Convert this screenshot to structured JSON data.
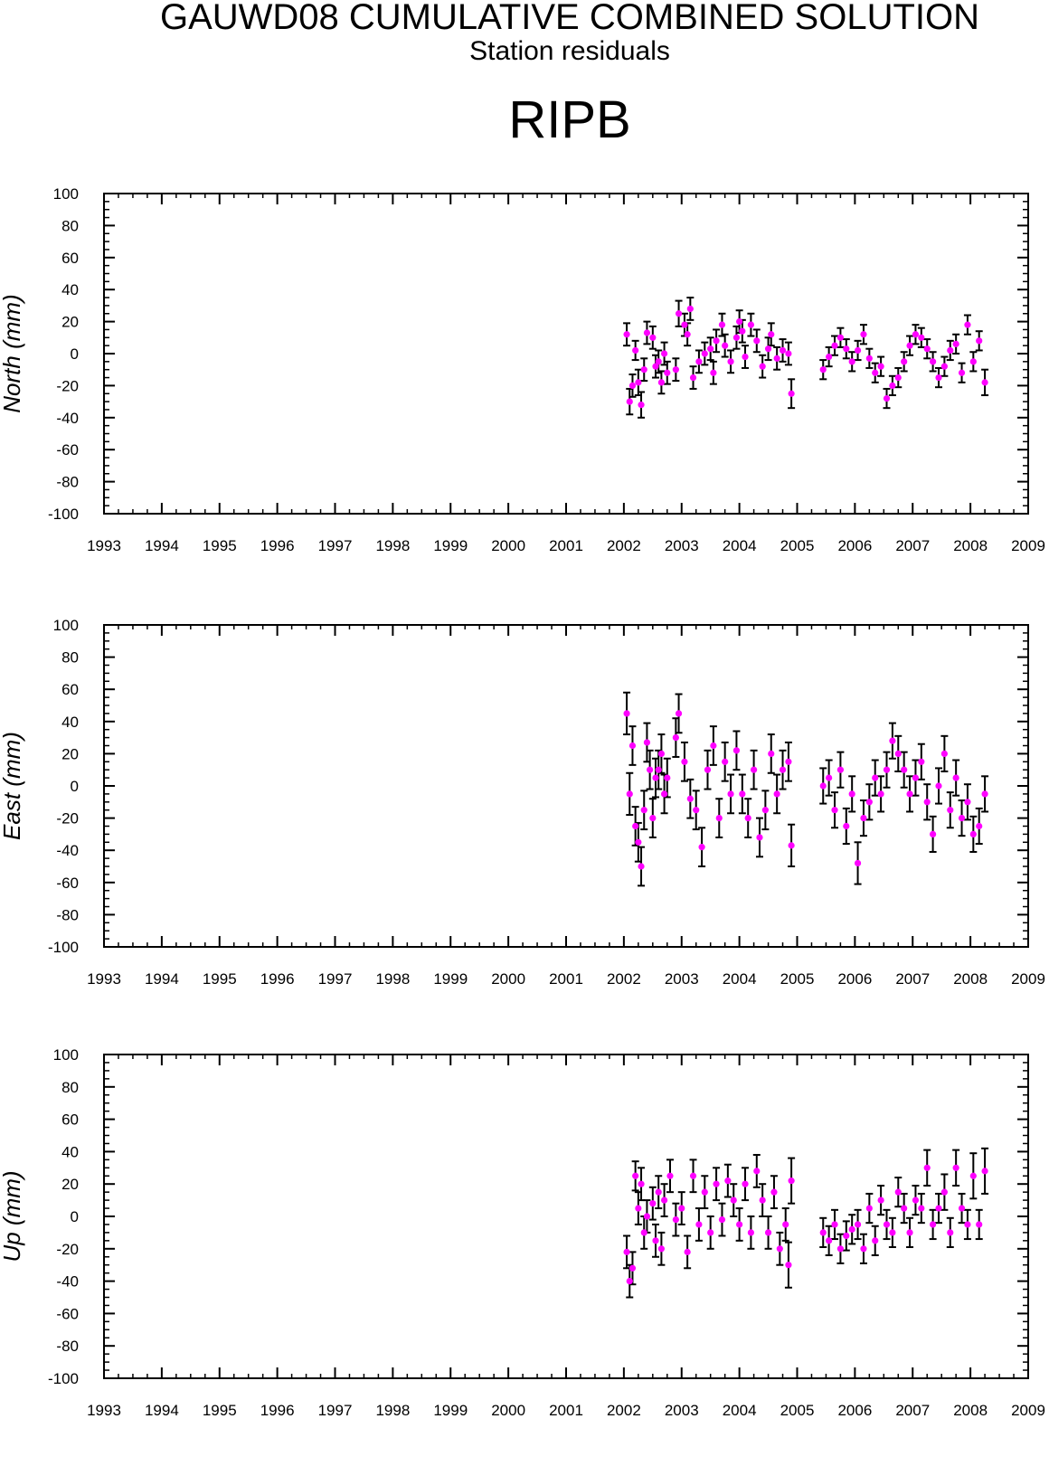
{
  "title": "GAUWD08 CUMULATIVE COMBINED SOLUTION",
  "subtitle": "Station residuals",
  "station": "RIPB",
  "colors": {
    "point": "#ff00ff",
    "errorbar": "#000000",
    "frame": "#000000"
  },
  "chart_data": [
    {
      "type": "scatter",
      "ylabel": "North (mm)",
      "xlim": [
        1993,
        2009
      ],
      "ylim": [
        -100,
        100
      ],
      "x_ticks": [
        "1993",
        "1994",
        "1995",
        "1996",
        "1997",
        "1998",
        "1999",
        "2000",
        "2001",
        "2002",
        "2003",
        "2004",
        "2005",
        "2006",
        "2007",
        "2008",
        "2009"
      ],
      "y_ticks": [
        "100",
        "80",
        "60",
        "40",
        "20",
        "0",
        "-20",
        "-40",
        "-60",
        "-80",
        "-100"
      ],
      "grid": false,
      "series": [
        {
          "x": [
            2002.05,
            2002.1,
            2002.15,
            2002.2,
            2002.25,
            2002.3,
            2002.35,
            2002.4,
            2002.5,
            2002.55,
            2002.6,
            2002.65,
            2002.7,
            2002.75,
            2002.9,
            2002.95,
            2003.05,
            2003.1,
            2003.15,
            2003.2,
            2003.3,
            2003.4,
            2003.5,
            2003.55,
            2003.6,
            2003.7,
            2003.75,
            2003.85,
            2003.95,
            2004.0,
            2004.05,
            2004.1,
            2004.2,
            2004.3,
            2004.4,
            2004.5,
            2004.55,
            2004.65,
            2004.75,
            2004.85,
            2004.9,
            2005.45,
            2005.55,
            2005.65,
            2005.75,
            2005.85,
            2005.95,
            2006.05,
            2006.15,
            2006.25,
            2006.35,
            2006.45,
            2006.55,
            2006.65,
            2006.75,
            2006.85,
            2006.95,
            2007.05,
            2007.15,
            2007.25,
            2007.35,
            2007.45,
            2007.55,
            2007.65,
            2007.75,
            2007.85,
            2007.95,
            2008.05,
            2008.15,
            2008.25
          ],
          "y": [
            12,
            -30,
            -20,
            2,
            -18,
            -32,
            -10,
            13,
            10,
            -8,
            -5,
            -18,
            0,
            -12,
            -10,
            25,
            18,
            12,
            28,
            -15,
            -5,
            0,
            3,
            -12,
            8,
            18,
            5,
            -5,
            10,
            20,
            14,
            -2,
            18,
            8,
            -8,
            3,
            12,
            -3,
            2,
            0,
            -25,
            -10,
            -2,
            5,
            10,
            3,
            -5,
            2,
            12,
            -3,
            -12,
            -8,
            -28,
            -20,
            -15,
            -5,
            5,
            12,
            10,
            3,
            -5,
            -15,
            -8,
            2,
            6,
            -12,
            18,
            -5,
            8,
            -18
          ],
          "err": [
            7,
            8,
            7,
            6,
            8,
            8,
            7,
            7,
            7,
            7,
            7,
            7,
            7,
            7,
            7,
            8,
            7,
            7,
            7,
            7,
            7,
            7,
            7,
            7,
            7,
            7,
            7,
            7,
            7,
            7,
            7,
            7,
            7,
            7,
            7,
            7,
            7,
            7,
            7,
            7,
            9,
            6,
            6,
            6,
            6,
            6,
            6,
            6,
            6,
            6,
            6,
            6,
            6,
            6,
            6,
            6,
            6,
            6,
            6,
            6,
            6,
            6,
            6,
            6,
            6,
            6,
            6,
            6,
            6,
            8
          ]
        }
      ]
    },
    {
      "type": "scatter",
      "ylabel": "East (mm)",
      "xlim": [
        1993,
        2009
      ],
      "ylim": [
        -100,
        100
      ],
      "x_ticks": [
        "1993",
        "1994",
        "1995",
        "1996",
        "1997",
        "1998",
        "1999",
        "2000",
        "2001",
        "2002",
        "2003",
        "2004",
        "2005",
        "2006",
        "2007",
        "2008",
        "2009"
      ],
      "y_ticks": [
        "100",
        "80",
        "60",
        "40",
        "20",
        "0",
        "-20",
        "-40",
        "-60",
        "-80",
        "-100"
      ],
      "grid": false,
      "series": [
        {
          "x": [
            2002.05,
            2002.1,
            2002.15,
            2002.2,
            2002.25,
            2002.3,
            2002.35,
            2002.4,
            2002.45,
            2002.5,
            2002.55,
            2002.6,
            2002.65,
            2002.7,
            2002.75,
            2002.9,
            2002.95,
            2003.05,
            2003.15,
            2003.25,
            2003.35,
            2003.45,
            2003.55,
            2003.65,
            2003.75,
            2003.85,
            2003.95,
            2004.05,
            2004.15,
            2004.25,
            2004.35,
            2004.45,
            2004.55,
            2004.65,
            2004.75,
            2004.85,
            2004.9,
            2005.45,
            2005.55,
            2005.65,
            2005.75,
            2005.85,
            2005.95,
            2006.05,
            2006.15,
            2006.25,
            2006.35,
            2006.45,
            2006.55,
            2006.65,
            2006.75,
            2006.85,
            2006.95,
            2007.05,
            2007.15,
            2007.25,
            2007.35,
            2007.45,
            2007.55,
            2007.65,
            2007.75,
            2007.85,
            2007.95,
            2008.05,
            2008.15,
            2008.25
          ],
          "y": [
            45,
            -5,
            25,
            -25,
            -35,
            -50,
            -15,
            27,
            10,
            -20,
            5,
            10,
            20,
            -5,
            5,
            30,
            45,
            15,
            -8,
            -15,
            -38,
            10,
            25,
            -20,
            15,
            -5,
            22,
            -5,
            -20,
            10,
            -32,
            -15,
            20,
            -5,
            10,
            15,
            -37,
            0,
            5,
            -15,
            10,
            -25,
            -5,
            -48,
            -20,
            -10,
            5,
            -5,
            10,
            28,
            20,
            10,
            -5,
            5,
            15,
            -10,
            -30,
            0,
            20,
            -15,
            5,
            -20,
            -10,
            -30,
            -25,
            -5
          ],
          "err": [
            13,
            13,
            12,
            12,
            12,
            12,
            12,
            12,
            12,
            12,
            12,
            12,
            12,
            12,
            12,
            12,
            12,
            12,
            12,
            12,
            12,
            12,
            12,
            12,
            12,
            12,
            12,
            12,
            12,
            12,
            12,
            12,
            12,
            12,
            12,
            12,
            13,
            11,
            11,
            11,
            11,
            11,
            11,
            13,
            11,
            11,
            11,
            11,
            11,
            11,
            11,
            11,
            11,
            11,
            11,
            11,
            11,
            11,
            11,
            11,
            11,
            11,
            11,
            11,
            11,
            11
          ]
        }
      ]
    },
    {
      "type": "scatter",
      "ylabel": "Up (mm)",
      "xlim": [
        1993,
        2009
      ],
      "ylim": [
        -100,
        100
      ],
      "x_ticks": [
        "1993",
        "1994",
        "1995",
        "1996",
        "1997",
        "1998",
        "1999",
        "2000",
        "2001",
        "2002",
        "2003",
        "2004",
        "2005",
        "2006",
        "2007",
        "2008",
        "2009"
      ],
      "y_ticks": [
        "100",
        "80",
        "60",
        "40",
        "20",
        "0",
        "-20",
        "-40",
        "-60",
        "-80",
        "-100"
      ],
      "grid": false,
      "series": [
        {
          "x": [
            2002.05,
            2002.1,
            2002.15,
            2002.2,
            2002.25,
            2002.3,
            2002.35,
            2002.4,
            2002.5,
            2002.55,
            2002.6,
            2002.65,
            2002.7,
            2002.8,
            2002.9,
            2003.0,
            2003.1,
            2003.2,
            2003.3,
            2003.4,
            2003.5,
            2003.6,
            2003.7,
            2003.8,
            2003.9,
            2004.0,
            2004.1,
            2004.2,
            2004.3,
            2004.4,
            2004.5,
            2004.6,
            2004.7,
            2004.8,
            2004.85,
            2004.9,
            2005.45,
            2005.55,
            2005.65,
            2005.75,
            2005.85,
            2005.95,
            2006.05,
            2006.15,
            2006.25,
            2006.35,
            2006.45,
            2006.55,
            2006.65,
            2006.75,
            2006.85,
            2006.95,
            2007.05,
            2007.15,
            2007.25,
            2007.35,
            2007.45,
            2007.55,
            2007.65,
            2007.75,
            2007.85,
            2007.95,
            2008.05,
            2008.15,
            2008.25
          ],
          "y": [
            -22,
            -40,
            -32,
            25,
            5,
            20,
            -10,
            0,
            8,
            -15,
            15,
            -20,
            10,
            25,
            -2,
            5,
            -22,
            25,
            -5,
            15,
            -10,
            20,
            -2,
            22,
            10,
            -5,
            20,
            -10,
            28,
            10,
            -10,
            15,
            -20,
            -5,
            -30,
            22,
            -10,
            -15,
            -5,
            -20,
            -12,
            -8,
            -5,
            -20,
            5,
            -15,
            10,
            -5,
            -10,
            15,
            5,
            -10,
            10,
            5,
            30,
            -5,
            5,
            15,
            -10,
            30,
            5,
            -5,
            25,
            -5,
            28
          ],
          "err": [
            10,
            10,
            10,
            9,
            10,
            10,
            10,
            10,
            10,
            10,
            10,
            10,
            10,
            10,
            10,
            10,
            10,
            10,
            10,
            10,
            10,
            10,
            10,
            10,
            10,
            10,
            10,
            10,
            10,
            10,
            10,
            10,
            10,
            10,
            14,
            14,
            9,
            9,
            9,
            9,
            9,
            9,
            9,
            9,
            9,
            9,
            9,
            9,
            9,
            9,
            9,
            9,
            9,
            9,
            11,
            9,
            9,
            11,
            9,
            11,
            9,
            9,
            14,
            9,
            14
          ]
        }
      ]
    }
  ]
}
